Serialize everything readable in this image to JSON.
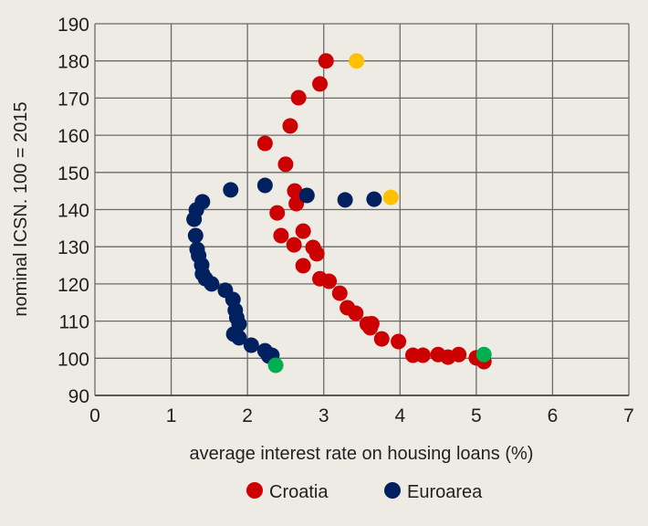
{
  "chart_data": {
    "type": "scatter",
    "title": "",
    "xlabel": "average interest rate on housing loans (%)",
    "ylabel": "nominal ICSN. 100 = 2015",
    "xlim": [
      0,
      7
    ],
    "ylim": [
      90,
      190
    ],
    "xticks": [
      "0",
      "1",
      "2",
      "3",
      "4",
      "5",
      "6",
      "7"
    ],
    "yticks": [
      "90",
      "100",
      "110",
      "120",
      "130",
      "140",
      "150",
      "160",
      "170",
      "180",
      "190"
    ],
    "grid": true,
    "legend_position": "bottom",
    "series": [
      {
        "name": "Croatia",
        "color": "#cc0000",
        "points": [
          [
            3.03,
            180
          ],
          [
            2.95,
            173.8
          ],
          [
            2.67,
            170.1
          ],
          [
            2.56,
            162.5
          ],
          [
            2.23,
            157.8
          ],
          [
            2.5,
            152.2
          ],
          [
            2.62,
            145
          ],
          [
            2.64,
            141.6
          ],
          [
            2.39,
            139.1
          ],
          [
            2.73,
            134.2
          ],
          [
            2.44,
            133
          ],
          [
            2.61,
            130.5
          ],
          [
            2.86,
            129.8
          ],
          [
            2.91,
            128.1
          ],
          [
            2.73,
            124.9
          ],
          [
            2.95,
            121.4
          ],
          [
            3.07,
            120.7
          ],
          [
            3.21,
            117.5
          ],
          [
            3.31,
            113.6
          ],
          [
            3.42,
            112.1
          ],
          [
            3.57,
            109.2
          ],
          [
            3.63,
            109.3
          ],
          [
            3.61,
            108.2
          ],
          [
            3.76,
            105.2
          ],
          [
            3.98,
            104.5
          ],
          [
            4.17,
            100.8
          ],
          [
            4.3,
            100.8
          ],
          [
            4.5,
            101
          ],
          [
            4.63,
            100.3
          ],
          [
            4.77,
            101
          ],
          [
            5.0,
            100.1
          ],
          [
            5.1,
            99.1
          ]
        ]
      },
      {
        "name": "Euroarea",
        "color": "#002060",
        "points": [
          [
            1.78,
            145.3
          ],
          [
            2.23,
            146.5
          ],
          [
            2.78,
            143.8
          ],
          [
            3.28,
            142.6
          ],
          [
            3.66,
            142.8
          ],
          [
            1.41,
            142.1
          ],
          [
            1.33,
            139.9
          ],
          [
            1.3,
            137.4
          ],
          [
            1.32,
            133
          ],
          [
            1.34,
            129.3
          ],
          [
            1.36,
            127.6
          ],
          [
            1.4,
            125.1
          ],
          [
            1.41,
            122.7
          ],
          [
            1.45,
            121.4
          ],
          [
            1.53,
            120
          ],
          [
            1.71,
            118.3
          ],
          [
            1.81,
            115.8
          ],
          [
            1.84,
            112.9
          ],
          [
            1.86,
            110.9
          ],
          [
            1.89,
            109.2
          ],
          [
            1.82,
            106.5
          ],
          [
            1.89,
            105.5
          ],
          [
            2.05,
            103.5
          ],
          [
            2.23,
            102
          ],
          [
            2.28,
            100.6
          ],
          [
            2.32,
            100.8
          ]
        ]
      }
    ],
    "highlights": [
      {
        "color": "#ffc000",
        "points": [
          [
            3.43,
            180
          ],
          [
            3.88,
            143.3
          ]
        ]
      },
      {
        "color": "#00b050",
        "points": [
          [
            2.37,
            98.1
          ],
          [
            5.1,
            101
          ]
        ]
      }
    ]
  },
  "colors": {
    "background": "#eeebe5",
    "grid": "#5a5a5a",
    "text": "#231f20"
  }
}
